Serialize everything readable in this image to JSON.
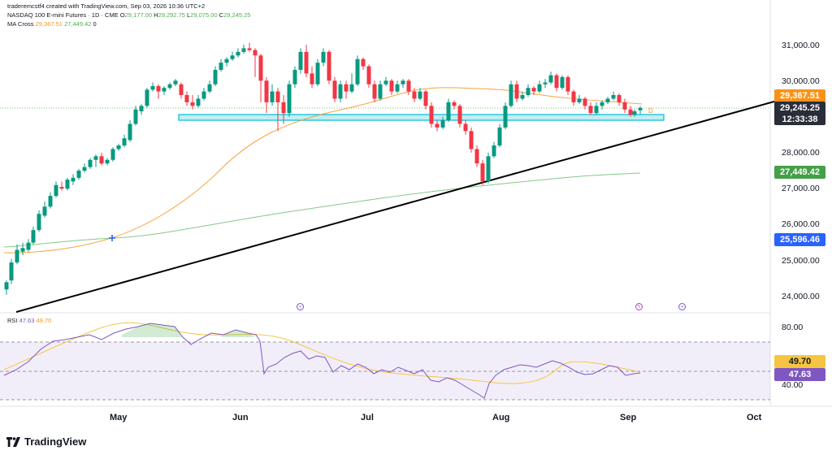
{
  "header": {
    "attribution": "traderemcstf4 created with TradingView.com, Sep 03, 2026 10:36 UTC+2",
    "symbol_line": "NASDAQ 100 E-mini Futures · 1D · CME",
    "ohlc": {
      "open_label": "O",
      "open": "29,177.00",
      "high_label": "H",
      "high": "29,292.75",
      "low_label": "L",
      "low": "29,075.00",
      "close_label": "C",
      "close": "29,245.25"
    },
    "ma_label": "MA Cross",
    "ma_fast": "29,367.51",
    "ma_slow": "27,449.42",
    "ma_zero": "0"
  },
  "rsi_header": {
    "label": "RSI",
    "value": "47.63",
    "ma": "49.70"
  },
  "price_axis": [
    "31,000.00",
    "30,000.00",
    "28,000.00",
    "27,000.00",
    "26,000.00",
    "25,000.00",
    "24,000.00"
  ],
  "rsi_axis": [
    "80.00",
    "40.00"
  ],
  "tags": {
    "ma_fast": "29,367.51",
    "last_price": "29,245.25",
    "countdown": "12:33:38",
    "ma_slow": "27,449.42",
    "cross_level": "25,596.46",
    "rsi_ma": "49.70",
    "rsi_value": "47.63"
  },
  "time_axis": [
    "May",
    "Jun",
    "Jul",
    "Aug",
    "Sep",
    "Oct"
  ],
  "brand": "TradingView",
  "colors": {
    "up": "#089981",
    "down": "#f23645",
    "ma_fast": "#f7931a",
    "ma_slow": "#66bb6a",
    "rsi": "#7e57c2",
    "rsi_ma": "#f5c542",
    "zone": "#00bcd4"
  }
}
